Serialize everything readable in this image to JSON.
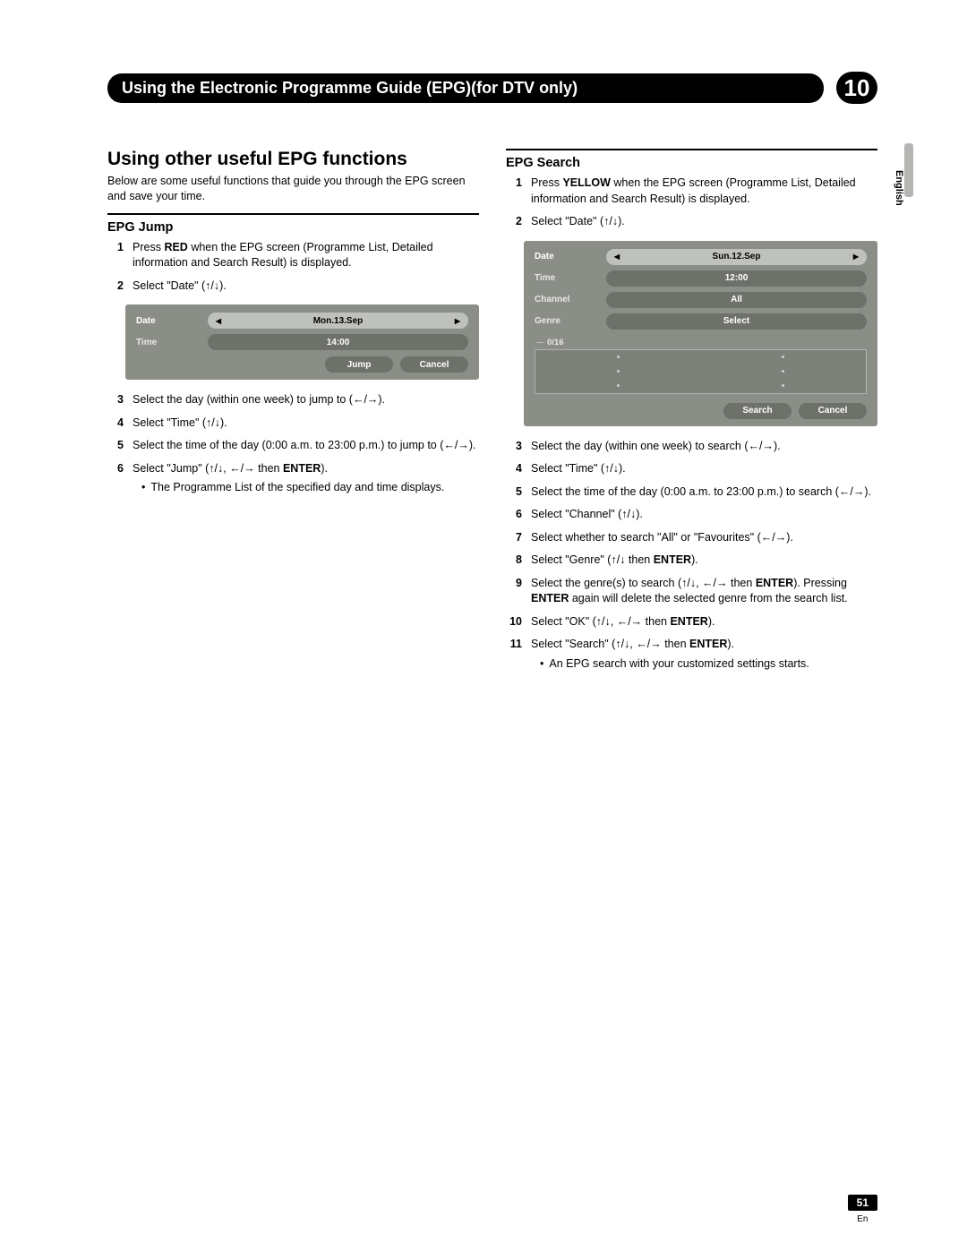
{
  "header": {
    "title": "Using the Electronic Programme Guide (EPG)(for DTV only)",
    "chapter": "10"
  },
  "side": {
    "language": "English"
  },
  "footer": {
    "page": "51",
    "lang": "En"
  },
  "left": {
    "section_title": "Using other useful EPG functions",
    "intro": "Below are some useful functions that guide you through the EPG screen and save your time.",
    "sub_title": "EPG Jump",
    "steps": {
      "s1_a": "Press ",
      "s1_b": "RED",
      "s1_c": " when the EPG screen (Programme List, Detailed information and Search Result) is displayed.",
      "s2": "Select \"Date\" (↑/↓).",
      "s3": "Select the day (within one week) to jump to (←/→).",
      "s4": "Select \"Time\"  (↑/↓).",
      "s5": "Select the time of the day (0:00 a.m. to 23:00 p.m.) to jump to (←/→).",
      "s6_a": "Select \"Jump\" (↑/↓, ←/→ then ",
      "s6_b": "ENTER",
      "s6_c": ").",
      "s6_sub": "The Programme List of the specified day and time displays."
    },
    "ui": {
      "date_label": "Date",
      "date_value": "Mon.13.Sep",
      "time_label": "Time",
      "time_value": "14:00",
      "btn_jump": "Jump",
      "btn_cancel": "Cancel"
    }
  },
  "right": {
    "sub_title": "EPG Search",
    "steps": {
      "s1_a": "Press ",
      "s1_b": "YELLOW",
      "s1_c": " when the EPG screen (Programme List, Detailed information and Search Result) is displayed.",
      "s2": "Select \"Date\" (↑/↓).",
      "s3": "Select the day (within one week) to search (←/→).",
      "s4": "Select \"Time\" (↑/↓).",
      "s5": "Select the time of the day (0:00 a.m. to 23:00 p.m.) to search (←/→).",
      "s6": "Select \"Channel\" (↑/↓).",
      "s7": "Select whether to search \"All\" or \"Favourites\" (←/→).",
      "s8_a": "Select \"Genre\" (↑/↓ then ",
      "s8_b": "ENTER",
      "s8_c": ").",
      "s9_a": "Select the genre(s) to search (↑/↓, ←/→ then ",
      "s9_b": "ENTER",
      "s9_c": "). Pressing ",
      "s9_d": "ENTER",
      "s9_e": " again will delete the selected genre from the search list.",
      "s10_a": "Select \"OK\" (↑/↓, ←/→ then ",
      "s10_b": "ENTER",
      "s10_c": ").",
      "s11_a": "Select \"Search\" (↑/↓, ←/→ then ",
      "s11_b": "ENTER",
      "s11_c": ").",
      "s11_sub": "An EPG search with your customized settings starts."
    },
    "ui": {
      "date_label": "Date",
      "date_value": "Sun.12.Sep",
      "time_label": "Time",
      "time_value": "12:00",
      "channel_label": "Channel",
      "channel_value": "All",
      "genre_label": "Genre",
      "genre_value": "Select",
      "count": "0/16",
      "btn_search": "Search",
      "btn_cancel": "Cancel"
    }
  }
}
